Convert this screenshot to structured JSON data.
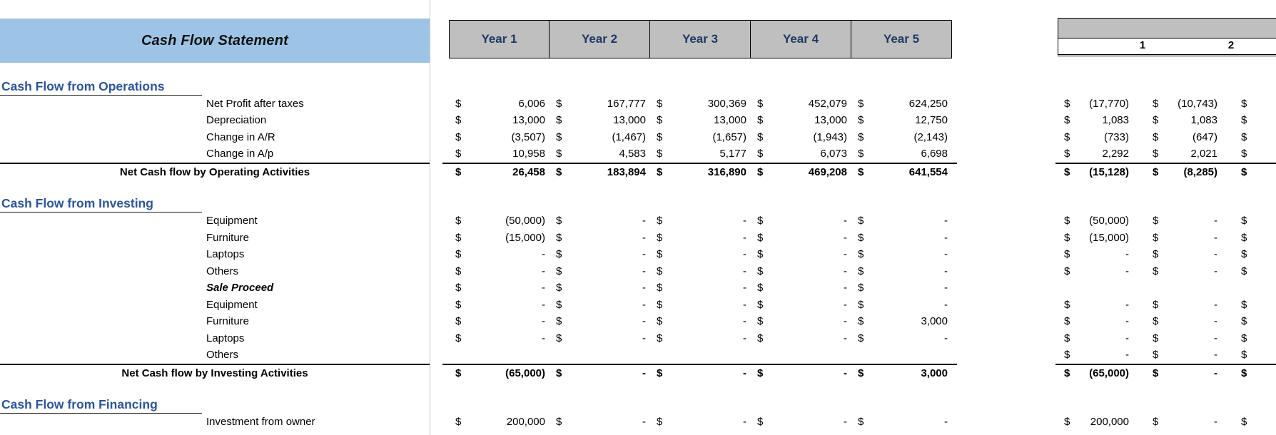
{
  "currency": "$",
  "title": "Cash Flow Statement",
  "year_columns": [
    "Year 1",
    "Year 2",
    "Year 3",
    "Year 4",
    "Year 5"
  ],
  "right_header_columns": [
    "1",
    "2"
  ],
  "right_partial_third_column": true,
  "colors": {
    "banner_bg": "#9DC3E6",
    "header_bg": "#BFBFBF",
    "header_text": "#1F3864",
    "section_heading_text": "#2E5596"
  },
  "rows": [
    {
      "type": "heading",
      "label": "Cash Flow from Operations"
    },
    {
      "type": "item",
      "label": "Net Profit after taxes",
      "values": [
        "6,006",
        "167,777",
        "300,369",
        "452,079",
        "624,250"
      ],
      "right": [
        "(17,770)",
        "(10,743)"
      ]
    },
    {
      "type": "item",
      "label": "Depreciation",
      "values": [
        "13,000",
        "13,000",
        "13,000",
        "13,000",
        "12,750"
      ],
      "right": [
        "1,083",
        "1,083"
      ]
    },
    {
      "type": "item",
      "label": "Change in A/R",
      "values": [
        "(3,507)",
        "(1,467)",
        "(1,657)",
        "(1,943)",
        "(2,143)"
      ],
      "right": [
        "(733)",
        "(647)"
      ]
    },
    {
      "type": "item",
      "label": "Change in A/p",
      "values": [
        "10,958",
        "4,583",
        "5,177",
        "6,073",
        "6,698"
      ],
      "right": [
        "2,292",
        "2,021"
      ]
    },
    {
      "type": "total",
      "label": "Net Cash flow by Operating Activities",
      "values": [
        "26,458",
        "183,894",
        "316,890",
        "469,208",
        "641,554"
      ],
      "right": [
        "(15,128)",
        "(8,285)"
      ]
    },
    {
      "type": "spacer"
    },
    {
      "type": "heading",
      "label": "Cash Flow from Investing"
    },
    {
      "type": "item",
      "label": "Equipment",
      "values": [
        "(50,000)",
        "-",
        "-",
        "-",
        "-"
      ],
      "right": [
        "(50,000)",
        "-"
      ]
    },
    {
      "type": "item",
      "label": "Furniture",
      "values": [
        "(15,000)",
        "-",
        "-",
        "-",
        "-"
      ],
      "right": [
        "(15,000)",
        "-"
      ]
    },
    {
      "type": "item",
      "label": "Laptops",
      "values": [
        "-",
        "-",
        "-",
        "-",
        "-"
      ],
      "right": [
        "-",
        "-"
      ]
    },
    {
      "type": "item",
      "label": "Others",
      "values": [
        "-",
        "-",
        "-",
        "-",
        "-"
      ],
      "right": [
        "-",
        "-"
      ]
    },
    {
      "type": "item",
      "label": "Sale Proceed",
      "em": true,
      "values": [
        "-",
        "-",
        "-",
        "-",
        "-"
      ],
      "right": null
    },
    {
      "type": "item",
      "label": "Equipment",
      "values": [
        "-",
        "-",
        "-",
        "-",
        "-"
      ],
      "right": [
        "-",
        "-"
      ]
    },
    {
      "type": "item",
      "label": "Furniture",
      "values": [
        "-",
        "-",
        "-",
        "-",
        "3,000"
      ],
      "right": [
        "-",
        "-"
      ]
    },
    {
      "type": "item",
      "label": "Laptops",
      "values": [
        "-",
        "-",
        "-",
        "-",
        "-"
      ],
      "right": [
        "-",
        "-"
      ]
    },
    {
      "type": "item",
      "label": "Others",
      "values": null,
      "right": [
        "-",
        "-"
      ]
    },
    {
      "type": "total",
      "label": "Net Cash flow by Investing Activities",
      "values": [
        "(65,000)",
        "-",
        "-",
        "-",
        "3,000"
      ],
      "right": [
        "(65,000)",
        "-"
      ]
    },
    {
      "type": "spacer"
    },
    {
      "type": "heading",
      "label": "Cash Flow from Financing"
    },
    {
      "type": "item",
      "label": "Investment from owner",
      "values": [
        "200,000",
        "-",
        "-",
        "-",
        "-"
      ],
      "right": [
        "200,000",
        "-"
      ]
    }
  ]
}
